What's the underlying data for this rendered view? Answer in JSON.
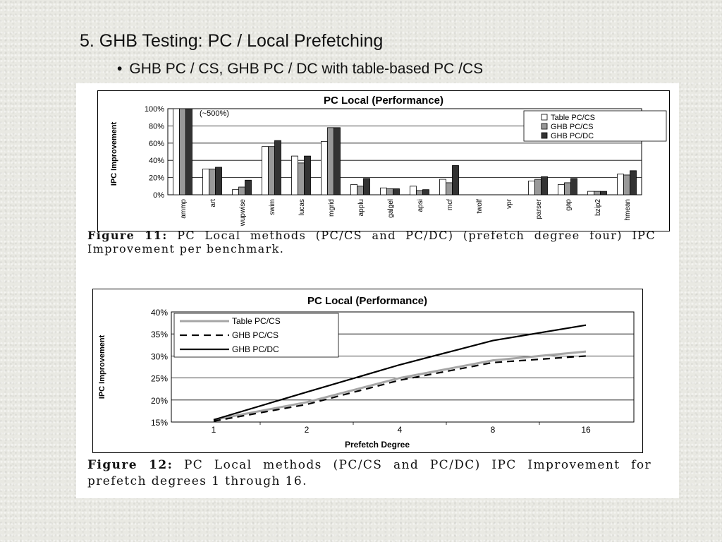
{
  "slide": {
    "title": "5. GHB Testing: PC / Local Prefetching",
    "bullet": "GHB PC / CS, GHB PC / DC with table-based PC /CS"
  },
  "chart_data": [
    {
      "type": "bar",
      "title": "PC Local (Performance)",
      "ylabel": "IPC Improvement",
      "xlabel": "",
      "ylim": [
        0,
        100
      ],
      "yticks": [
        "0%",
        "20%",
        "40%",
        "60%",
        "80%",
        "100%"
      ],
      "annotation": "(~500%)",
      "legend_position": "top-right",
      "categories": [
        "ammp",
        "art",
        "wupwise",
        "swim",
        "lucas",
        "mgrid",
        "applu",
        "galgel",
        "apsi",
        "mcf",
        "twolf",
        "vpr",
        "parser",
        "gap",
        "bzip2",
        "hmean"
      ],
      "series": [
        {
          "name": "Table PC/CS",
          "color": "#ffffff",
          "values": [
            100,
            30,
            6,
            56,
            45,
            62,
            12,
            8,
            10,
            18,
            0,
            0,
            16,
            12,
            4,
            24
          ]
        },
        {
          "name": "GHB PC/CS",
          "color": "#999999",
          "values": [
            100,
            30,
            9,
            56,
            37,
            78,
            10,
            7,
            5,
            14,
            0,
            0,
            18,
            14,
            4,
            23
          ]
        },
        {
          "name": "GHB PC/DC",
          "color": "#333333",
          "values": [
            100,
            32,
            17,
            63,
            45,
            78,
            19,
            7,
            6,
            34,
            0,
            0,
            21,
            19,
            4,
            28
          ]
        }
      ],
      "caption_label": "Figure 11:",
      "caption_text": "PC Local methods (PC/CS and PC/DC) (prefetch degree four) IPC Improvement per benchmark."
    },
    {
      "type": "line",
      "title": "PC Local (Performance)",
      "ylabel": "IPC Improvement",
      "xlabel": "Prefetch Degree",
      "ylim": [
        15,
        40
      ],
      "yticks": [
        "15%",
        "20%",
        "25%",
        "30%",
        "35%",
        "40%"
      ],
      "legend_position": "top-left",
      "x": [
        "1",
        "2",
        "4",
        "8",
        "16"
      ],
      "series": [
        {
          "name": "Table PC/CS",
          "color": "#a6a6a6",
          "dash": "solid",
          "values": [
            15.5,
            19.5,
            25,
            29,
            31
          ]
        },
        {
          "name": "GHB PC/CS",
          "color": "#000000",
          "dash": "dashed",
          "values": [
            15.2,
            19,
            24.5,
            28.5,
            30
          ]
        },
        {
          "name": "GHB PC/DC",
          "color": "#000000",
          "dash": "solid",
          "values": [
            15.5,
            21.8,
            28,
            33.5,
            37
          ]
        }
      ],
      "caption_label": "Figure 12:",
      "caption_text": "PC Local methods (PC/CS and PC/DC) IPC Improvement for prefetch degrees 1 through 16."
    }
  ]
}
